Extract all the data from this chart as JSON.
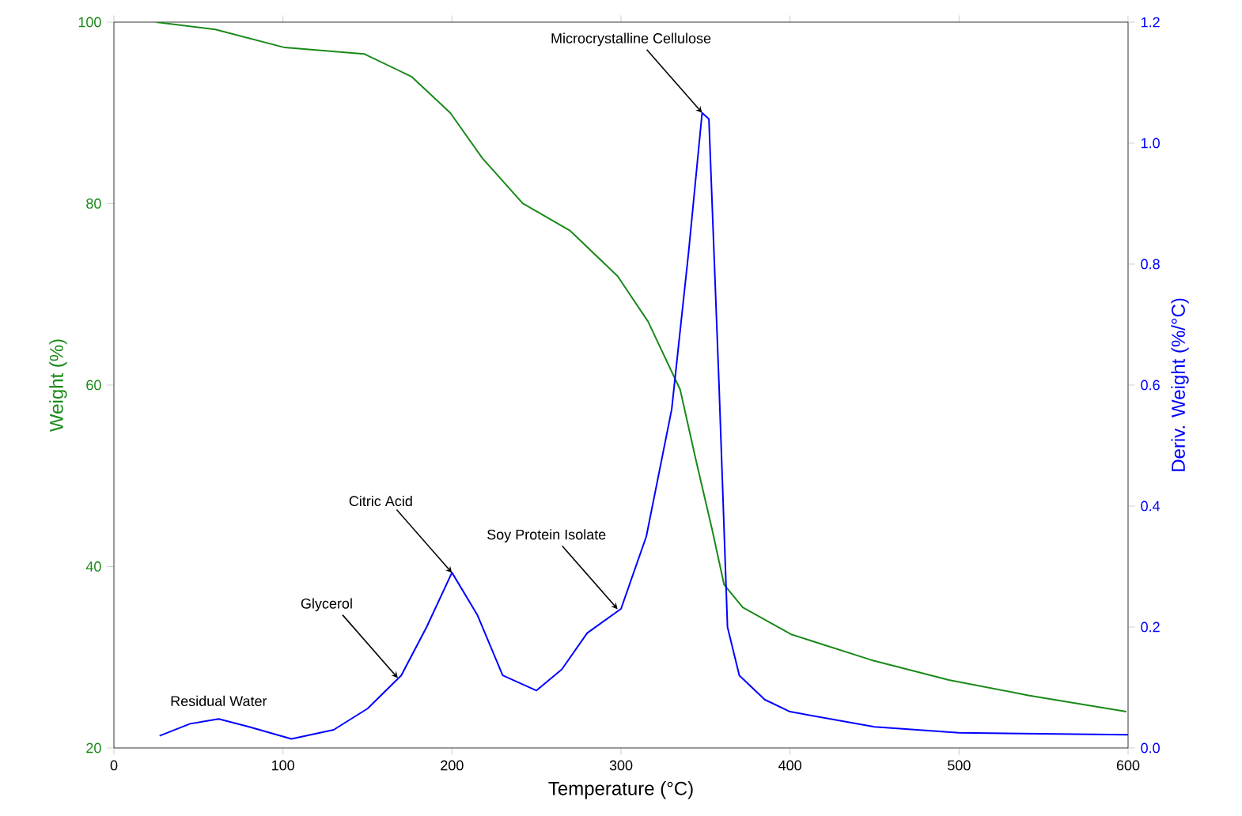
{
  "chart_data": {
    "type": "line",
    "xlabel": "Temperature (°C)",
    "ylabel": "Weight (%)",
    "y2label": "Deriv. Weight (%/°C)",
    "xlim": [
      0,
      600
    ],
    "xticks": [
      0,
      100,
      200,
      300,
      400,
      500,
      600
    ],
    "ylim": [
      20,
      100
    ],
    "yticks": [
      20,
      40,
      60,
      80,
      100
    ],
    "y2lim": [
      0,
      1.2
    ],
    "y2ticks": [
      {
        "value": 0,
        "label": "0.0"
      },
      0.2,
      0.4,
      0.6,
      0.8,
      {
        "value": 1,
        "label": "1.0"
      },
      1.2
    ],
    "series": [
      {
        "color": "#1a8a1a",
        "x": [
          25,
          60,
          101,
          148,
          176,
          199,
          218,
          242,
          270,
          298,
          316,
          335,
          344,
          354,
          361,
          372,
          401,
          448,
          494,
          541,
          599
        ],
        "values": [
          100,
          99.2,
          97.2,
          96.5,
          94,
          90,
          85,
          80,
          77,
          72,
          67,
          59.5,
          52,
          44,
          38,
          35.5,
          32.5,
          29.7,
          27.5,
          25.8,
          24
        ]
      },
      {
        "color": "#0000ff",
        "axis": "y2",
        "x": [
          27,
          45,
          62,
          80,
          105,
          130,
          150,
          170,
          185,
          200,
          215,
          230,
          250,
          265,
          280,
          300,
          315,
          330,
          340,
          348,
          352,
          358,
          363,
          370,
          385,
          400,
          450,
          500,
          600
        ],
        "values": [
          0.02,
          0.04,
          0.048,
          0.035,
          0.015,
          0.03,
          0.065,
          0.12,
          0.2,
          0.29,
          0.22,
          0.12,
          0.095,
          0.13,
          0.19,
          0.23,
          0.35,
          0.56,
          0.82,
          1.05,
          1.04,
          0.6,
          0.2,
          0.12,
          0.08,
          0.06,
          0.035,
          0.025,
          0.022
        ]
      }
    ],
    "annotations": [
      "Residual Water",
      {
        "text": "Glycerol",
        "x": 168,
        "y": 27.7
      },
      {
        "text": "Citric Acid",
        "x": 200,
        "y": 39.3
      },
      {
        "text": "Soy Protein Isolate",
        "x": 298,
        "y": 35.3
      },
      {
        "text": "Microcrystalline Cellulose",
        "x": 348,
        "y": 90
      }
    ]
  }
}
